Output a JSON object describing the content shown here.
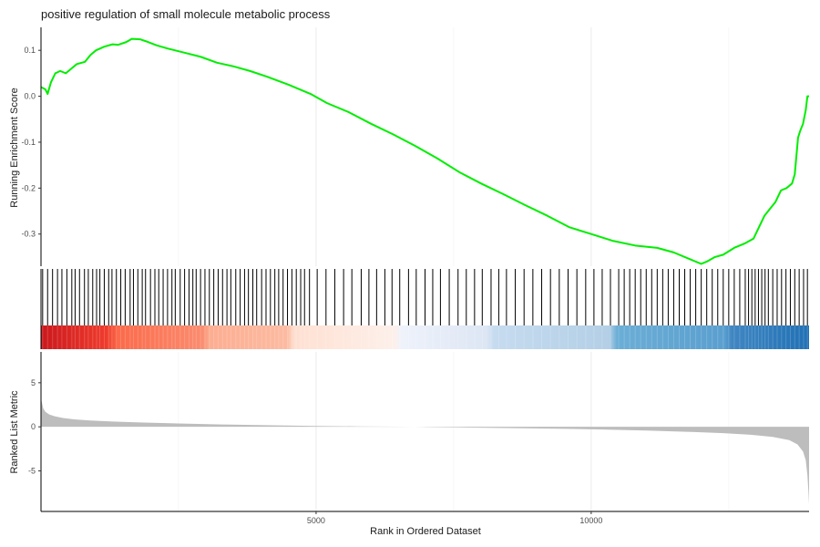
{
  "chart_data": {
    "title": "positive regulation of small molecule metabolic process",
    "x_max": 13960,
    "x_ticks": [
      5000,
      10000
    ],
    "x_label": "Rank in Ordered Dataset",
    "panels": [
      {
        "name": "running-enrichment",
        "type": "line",
        "ylabel": "Running Enrichment Score",
        "y_ticks": [
          0.1,
          0.0,
          -0.1,
          -0.2,
          -0.3
        ],
        "y_tick_labels": [
          "0.1",
          "0.0",
          "-0.1",
          "-0.2",
          "-0.3"
        ],
        "ylim": [
          -0.37,
          0.15
        ],
        "line_color": "#00ee00",
        "points": [
          [
            0,
            0.02
          ],
          [
            80,
            0.015
          ],
          [
            120,
            0.005
          ],
          [
            180,
            0.03
          ],
          [
            260,
            0.05
          ],
          [
            350,
            0.055
          ],
          [
            450,
            0.05
          ],
          [
            550,
            0.06
          ],
          [
            650,
            0.07
          ],
          [
            800,
            0.075
          ],
          [
            900,
            0.09
          ],
          [
            1000,
            0.1
          ],
          [
            1150,
            0.108
          ],
          [
            1300,
            0.113
          ],
          [
            1400,
            0.112
          ],
          [
            1550,
            0.118
          ],
          [
            1650,
            0.125
          ],
          [
            1800,
            0.124
          ],
          [
            1900,
            0.12
          ],
          [
            2100,
            0.111
          ],
          [
            2300,
            0.104
          ],
          [
            2600,
            0.095
          ],
          [
            2900,
            0.086
          ],
          [
            3200,
            0.073
          ],
          [
            3500,
            0.065
          ],
          [
            3800,
            0.055
          ],
          [
            4100,
            0.043
          ],
          [
            4500,
            0.025
          ],
          [
            4900,
            0.005
          ],
          [
            5200,
            -0.015
          ],
          [
            5600,
            -0.035
          ],
          [
            6000,
            -0.06
          ],
          [
            6400,
            -0.083
          ],
          [
            6800,
            -0.108
          ],
          [
            7200,
            -0.135
          ],
          [
            7600,
            -0.165
          ],
          [
            8000,
            -0.19
          ],
          [
            8400,
            -0.213
          ],
          [
            8800,
            -0.237
          ],
          [
            9200,
            -0.26
          ],
          [
            9600,
            -0.285
          ],
          [
            10000,
            -0.3
          ],
          [
            10400,
            -0.315
          ],
          [
            10800,
            -0.325
          ],
          [
            11200,
            -0.33
          ],
          [
            11500,
            -0.34
          ],
          [
            11800,
            -0.355
          ],
          [
            12000,
            -0.365
          ],
          [
            12100,
            -0.36
          ],
          [
            12250,
            -0.35
          ],
          [
            12400,
            -0.345
          ],
          [
            12600,
            -0.33
          ],
          [
            12800,
            -0.32
          ],
          [
            12950,
            -0.31
          ],
          [
            13050,
            -0.285
          ],
          [
            13150,
            -0.26
          ],
          [
            13250,
            -0.245
          ],
          [
            13350,
            -0.23
          ],
          [
            13450,
            -0.205
          ],
          [
            13550,
            -0.2
          ],
          [
            13650,
            -0.19
          ],
          [
            13700,
            -0.17
          ],
          [
            13760,
            -0.09
          ],
          [
            13800,
            -0.075
          ],
          [
            13850,
            -0.06
          ],
          [
            13900,
            -0.03
          ],
          [
            13930,
            0.0
          ],
          [
            13960,
            0.0
          ]
        ]
      },
      {
        "name": "hit-positions",
        "type": "barcode",
        "hits": [
          30,
          120,
          210,
          300,
          380,
          470,
          560,
          620,
          700,
          790,
          860,
          940,
          1010,
          1070,
          1150,
          1230,
          1290,
          1370,
          1450,
          1530,
          1620,
          1680,
          1760,
          1840,
          1900,
          1990,
          2070,
          2140,
          2220,
          2300,
          2380,
          2440,
          2530,
          2610,
          2690,
          2760,
          2820,
          2900,
          2980,
          3060,
          3140,
          3220,
          3300,
          3380,
          3450,
          3540,
          3620,
          3700,
          3770,
          3850,
          3920,
          4010,
          4090,
          4170,
          4250,
          4320,
          4400,
          4480,
          4560,
          4640,
          4720,
          4790,
          4880,
          5020,
          5180,
          5340,
          5500,
          5650,
          5820,
          5960,
          6100,
          6250,
          6380,
          6520,
          6680,
          6820,
          6980,
          7120,
          7260,
          7420,
          7580,
          7730,
          7880,
          8020,
          8180,
          8320,
          8460,
          8620,
          8780,
          8940,
          9100,
          9260,
          9420,
          9580,
          9740,
          9900,
          10050,
          10200,
          10350,
          10500,
          10600,
          10700,
          10800,
          10900,
          11000,
          11100,
          11200,
          11300,
          11400,
          11500,
          11600,
          11700,
          11800,
          11900,
          12000,
          12100,
          12200,
          12300,
          12400,
          12500,
          12600,
          12700,
          12800,
          12860,
          12920,
          12980,
          13040,
          13100,
          13160,
          13220,
          13300,
          13380,
          13460,
          13540,
          13620,
          13700,
          13780,
          13860,
          13930
        ],
        "gradient_stops": [
          [
            0,
            "#cb181d"
          ],
          [
            0.085,
            "#ef3b2c"
          ],
          [
            0.1,
            "#fb6a4a"
          ],
          [
            0.21,
            "#fb8c6f"
          ],
          [
            0.22,
            "#fcae91"
          ],
          [
            0.32,
            "#fcbba1"
          ],
          [
            0.33,
            "#fee0d2"
          ],
          [
            0.46,
            "#fdf0ea"
          ],
          [
            0.47,
            "#eef2fb"
          ],
          [
            0.58,
            "#dde6f4"
          ],
          [
            0.59,
            "#c6dbef"
          ],
          [
            0.74,
            "#b3cfe6"
          ],
          [
            0.75,
            "#6baed6"
          ],
          [
            0.89,
            "#5a9fcf"
          ],
          [
            0.9,
            "#3f86c2"
          ],
          [
            1,
            "#2171b5"
          ]
        ]
      },
      {
        "name": "ranked-list-metric",
        "type": "area",
        "ylabel": "Ranked List Metric",
        "y_ticks": [
          5,
          0,
          -5
        ],
        "y_tick_labels": [
          "5",
          "0",
          "-5"
        ],
        "ylim": [
          -9.6,
          8.5
        ],
        "fill_color": "#bdbdbd",
        "points": [
          [
            0,
            3.2
          ],
          [
            15,
            2.8
          ],
          [
            40,
            2.1
          ],
          [
            80,
            1.7
          ],
          [
            150,
            1.4
          ],
          [
            250,
            1.2
          ],
          [
            400,
            1.0
          ],
          [
            600,
            0.85
          ],
          [
            900,
            0.72
          ],
          [
            1300,
            0.6
          ],
          [
            1800,
            0.5
          ],
          [
            2500,
            0.38
          ],
          [
            3300,
            0.27
          ],
          [
            4200,
            0.17
          ],
          [
            5000,
            0.1
          ],
          [
            5800,
            0.05
          ],
          [
            6500,
            0.02
          ],
          [
            6800,
            0.0
          ],
          [
            7100,
            -0.03
          ],
          [
            7800,
            -0.08
          ],
          [
            8600,
            -0.15
          ],
          [
            9400,
            -0.22
          ],
          [
            10200,
            -0.3
          ],
          [
            11000,
            -0.42
          ],
          [
            11800,
            -0.57
          ],
          [
            12400,
            -0.72
          ],
          [
            12900,
            -0.9
          ],
          [
            13300,
            -1.15
          ],
          [
            13600,
            -1.5
          ],
          [
            13750,
            -2.0
          ],
          [
            13850,
            -2.8
          ],
          [
            13900,
            -3.8
          ],
          [
            13930,
            -5.5
          ],
          [
            13950,
            -7.5
          ],
          [
            13960,
            -8.8
          ]
        ]
      }
    ]
  }
}
